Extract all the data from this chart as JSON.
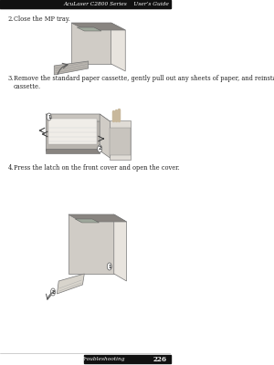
{
  "bg_color": "#ffffff",
  "header_text": "AcuLaser C2800 Series    User’s Guide",
  "footer_left_text": "Troubleshooting",
  "footer_right_text": "226",
  "header_bar_color": "#111111",
  "footer_bar_color": "#111111",
  "step2_label": "2.",
  "step2_text": "Close the MP tray.",
  "step3_label": "3.",
  "step3_text": "Remove the standard paper cassette, gently pull out any sheets of paper, and reinstall the paper\ncassette.",
  "step4_label": "4.",
  "step4_text": "Press the latch on the front cover and open the cover.",
  "text_color": "#222222",
  "text_fontsize": 4.8,
  "header_fontsize": 4.2,
  "footer_fontsize": 4.2,
  "separator_color": "#aaaaaa",
  "printer_body_color": "#d0ccc6",
  "printer_dark_color": "#888480",
  "printer_side_color": "#e8e4de",
  "tray_color": "#b8b4ae",
  "paper_color": "#f0ede8"
}
